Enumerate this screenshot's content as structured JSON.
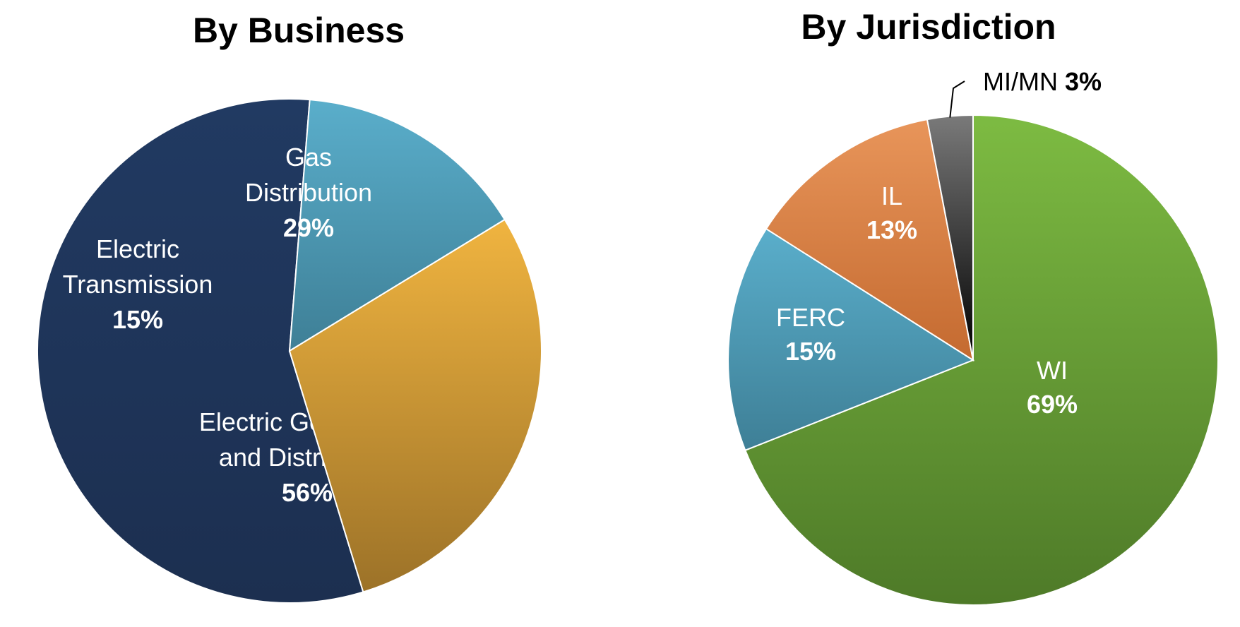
{
  "chart_data": [
    {
      "type": "pie",
      "title": "By Business",
      "slices": [
        {
          "name": "Electric Generation and Distribution",
          "lines": [
            "Electric Generation",
            "and Distribution"
          ],
          "value": 56,
          "label": "56%",
          "color": "#203659"
        },
        {
          "name": "Electric Transmission",
          "lines": [
            "Electric",
            "Transmission"
          ],
          "value": 15,
          "label": "15%",
          "color": "#4a96b0"
        },
        {
          "name": "Gas Distribution",
          "lines": [
            "Gas",
            "Distribution"
          ],
          "value": 29,
          "label": "29%",
          "color": "#e0a43d"
        }
      ]
    },
    {
      "type": "pie",
      "title": "By Jurisdiction",
      "slices": [
        {
          "name": "WI",
          "lines": [
            "WI"
          ],
          "value": 69,
          "label": "69%",
          "color": "#66a038"
        },
        {
          "name": "FERC",
          "lines": [
            "FERC"
          ],
          "value": 15,
          "label": "15%",
          "color": "#4a96b0"
        },
        {
          "name": "IL",
          "lines": [
            "IL"
          ],
          "value": 13,
          "label": "13%",
          "color": "#d9834a"
        },
        {
          "name": "MI/MN",
          "lines": [
            "MI/MN"
          ],
          "value": 3,
          "label": "3%",
          "color": "#3a3a3a",
          "external_label": true
        }
      ]
    }
  ]
}
